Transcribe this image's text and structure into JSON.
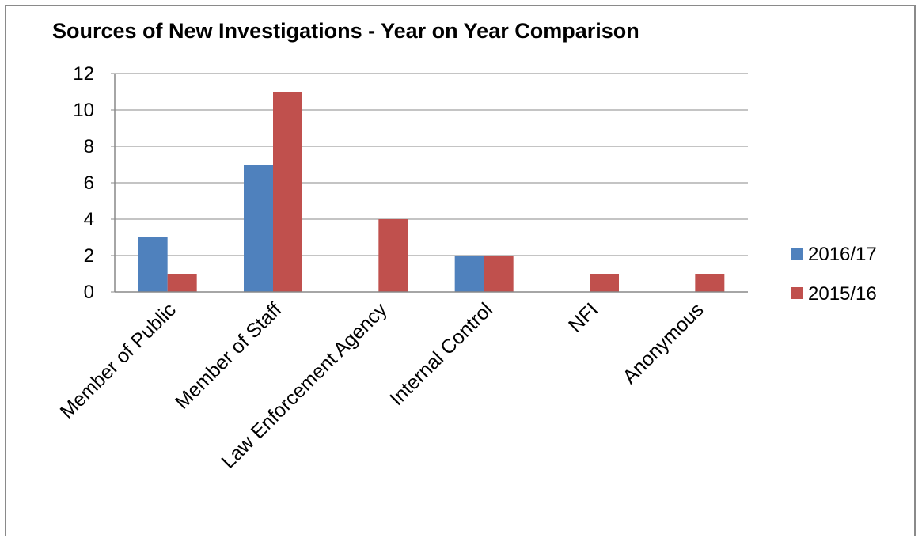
{
  "chart_data": {
    "type": "bar",
    "title": "Sources of New Investigations - Year on Year Comparison",
    "categories": [
      "Member of Public",
      "Member of Staff",
      "Law Enforcement Agency",
      "Internal Control",
      "NFI",
      "Anonymous"
    ],
    "series": [
      {
        "name": "2016/17",
        "color": "#4f81bd",
        "values": [
          3,
          7,
          0,
          2,
          0,
          0
        ]
      },
      {
        "name": "2015/16",
        "color": "#c0504d",
        "values": [
          1,
          11,
          4,
          2,
          1,
          1
        ]
      }
    ],
    "y_ticks": [
      "0",
      "2",
      "4",
      "6",
      "8",
      "10",
      "12"
    ],
    "ylim": [
      0,
      12
    ],
    "grid": true,
    "legend_position": "right"
  }
}
